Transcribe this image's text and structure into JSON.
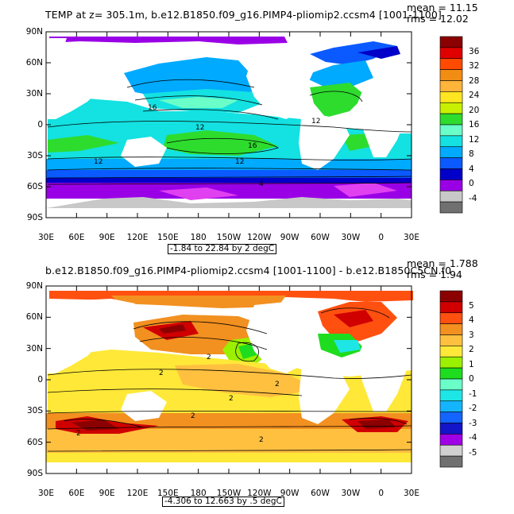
{
  "panel1": {
    "title": "TEMP at z= 305.1m, b.e12.B1850.f09_g16.PIMP4-pliomip2.ccsm4 [1001-1100]",
    "mean": "mean = 11.15",
    "rms": "rms = 12.02",
    "range": "-1.84 to 22.84 by 2 degC",
    "y_ticks": [
      "90N",
      "60N",
      "30N",
      "0",
      "30S",
      "60S",
      "90S"
    ],
    "x_ticks": [
      "30E",
      "60E",
      "90E",
      "120E",
      "150E",
      "180",
      "150W",
      "120W",
      "90W",
      "60W",
      "30W",
      "0",
      "30E"
    ],
    "contour_labels": [
      "16",
      "12",
      "12",
      "16",
      "12",
      "12",
      "4"
    ],
    "colorbar": {
      "labels": [
        "36",
        "32",
        "28",
        "24",
        "20",
        "16",
        "12",
        "8",
        "4",
        "0",
        "-4"
      ],
      "colors": [
        "#8b0000",
        "#e00000",
        "#ff4a00",
        "#f28d14",
        "#ffb43a",
        "#ffe620",
        "#c8f000",
        "#2edc2e",
        "#6affc8",
        "#14e1e1",
        "#00aaff",
        "#0a5aff",
        "#0000c8",
        "#9a00e6",
        "#c8c8c8",
        "#707070"
      ]
    }
  },
  "panel2": {
    "title": "b.e12.B1850.f09_g16.PIMP4-pliomip2.ccsm4 [1001-1100] - b.e12.B1850C5CN.f0",
    "mean": "mean = 1.788",
    "rms": "rms = 1.94",
    "range": "-4.306 to 12.663 by .5 degC",
    "y_ticks": [
      "90N",
      "60N",
      "30N",
      "0",
      "30S",
      "60S",
      "90S"
    ],
    "x_ticks": [
      "30E",
      "60E",
      "90E",
      "120E",
      "150E",
      "180",
      "150W",
      "120W",
      "90W",
      "60W",
      "30W",
      "0",
      "30E"
    ],
    "contour_labels": [
      "2",
      "2",
      "2",
      "2",
      "2",
      "2",
      "2"
    ],
    "colorbar": {
      "labels": [
        "5",
        "4",
        "3",
        "2",
        "1",
        "0",
        "-1",
        "-2",
        "-3",
        "-4",
        "-5"
      ],
      "colors": [
        "#8b0000",
        "#d00000",
        "#ff5010",
        "#f29020",
        "#ffc040",
        "#ffe838",
        "#9bf000",
        "#1edc1e",
        "#6affc8",
        "#1ee6e6",
        "#14b4ff",
        "#1464ff",
        "#1414c8",
        "#a000e6",
        "#d0d0d0",
        "#707070"
      ]
    }
  }
}
